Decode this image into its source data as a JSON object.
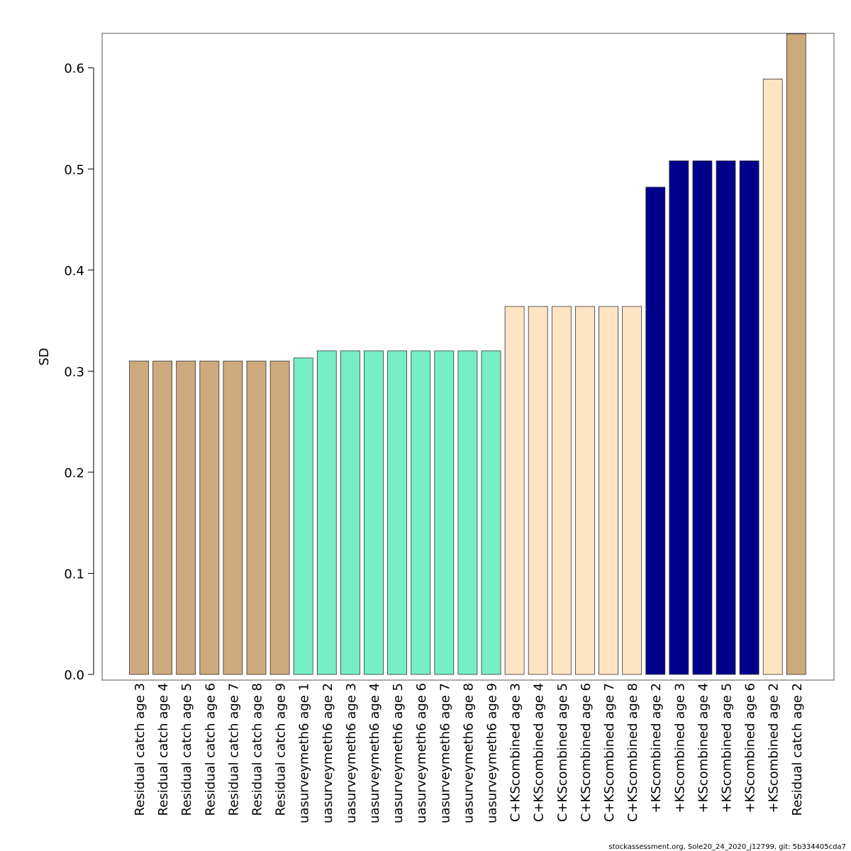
{
  "chart_data": {
    "type": "bar",
    "title": "",
    "xlabel": "",
    "ylabel": "SD",
    "ylim": [
      0,
      0.6336
    ],
    "yticks": [
      "0.0",
      "0.1",
      "0.2",
      "0.3",
      "0.4",
      "0.5",
      "0.6"
    ],
    "grid": false,
    "categories": [
      "Residual catch age 3",
      "Residual catch age 4",
      "Residual catch age 5",
      "Residual catch age 6",
      "Residual catch age 7",
      "Residual catch age 8",
      "Residual catch age 9",
      "uasurveymeth6 age 1",
      "uasurveymeth6 age 2",
      "uasurveymeth6 age 3",
      "uasurveymeth6 age 4",
      "uasurveymeth6 age 5",
      "uasurveymeth6 age 6",
      "uasurveymeth6 age 7",
      "uasurveymeth6 age 8",
      "uasurveymeth6 age 9",
      "C+KScombined age 3",
      "C+KScombined age 4",
      "C+KScombined age 5",
      "C+KScombined age 6",
      "C+KScombined age 7",
      "C+KScombined age 8",
      "+KScombined age 2",
      "+KScombined age 3",
      "+KScombined age 4",
      "+KScombined age 5",
      "+KScombined age 6",
      "+KScombined age 2",
      "Residual catch age 2"
    ],
    "values": [
      0.31,
      0.31,
      0.31,
      0.31,
      0.31,
      0.31,
      0.31,
      0.313,
      0.32,
      0.32,
      0.32,
      0.32,
      0.32,
      0.32,
      0.32,
      0.32,
      0.364,
      0.364,
      0.364,
      0.364,
      0.364,
      0.364,
      0.482,
      0.508,
      0.508,
      0.508,
      0.508,
      0.589,
      0.634
    ],
    "bar_colors": [
      "#CDAA7D",
      "#CDAA7D",
      "#CDAA7D",
      "#CDAA7D",
      "#CDAA7D",
      "#CDAA7D",
      "#CDAA7D",
      "#76EEC6",
      "#76EEC6",
      "#76EEC6",
      "#76EEC6",
      "#76EEC6",
      "#76EEC6",
      "#76EEC6",
      "#76EEC6",
      "#76EEC6",
      "#FFE4C4",
      "#FFE4C4",
      "#FFE4C4",
      "#FFE4C4",
      "#FFE4C4",
      "#FFE4C4",
      "#00008B",
      "#00008B",
      "#00008B",
      "#00008B",
      "#00008B",
      "#FFE4C4",
      "#CDAA7D"
    ],
    "footer": "stockassessment.org, Sole20_24_2020_j12799, git: 5b334405cda7"
  }
}
